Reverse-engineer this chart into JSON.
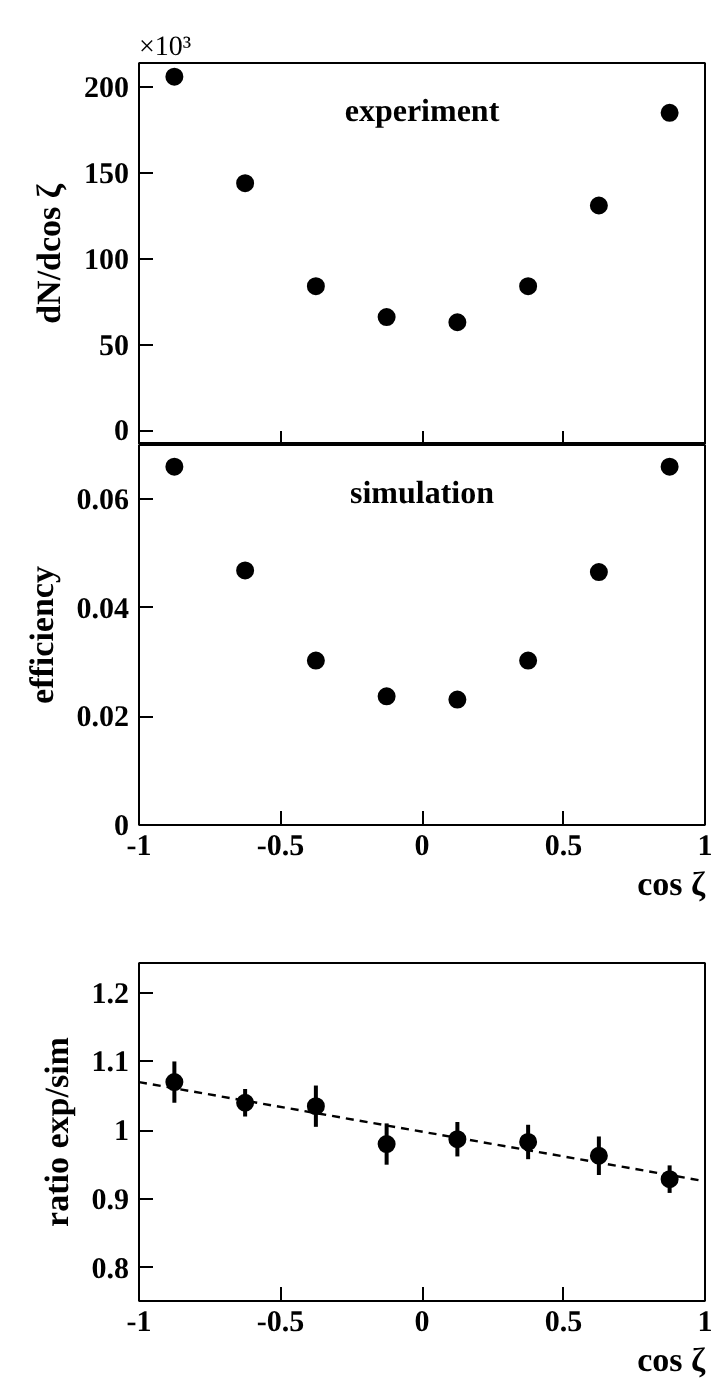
{
  "chart_data": [
    {
      "type": "scatter",
      "ylabel": "dN/dcos ζ",
      "annotations": [
        "×10³",
        "experiment"
      ],
      "x": [
        -0.875,
        -0.625,
        -0.375,
        -0.125,
        0.125,
        0.375,
        0.625,
        0.875
      ],
      "values": [
        206,
        144,
        84,
        66,
        63,
        84,
        131,
        185
      ],
      "color": "#000000",
      "marker": "circle",
      "xlim": [
        -1,
        1
      ],
      "ylim": [
        -8.5,
        214
      ],
      "yticks": [
        0,
        50,
        100,
        150,
        200
      ],
      "tick_labels": "y",
      "grid": false
    },
    {
      "type": "scatter",
      "ylabel": "efficiency",
      "xlabel": "cos ζ",
      "annotations": [
        "simulation"
      ],
      "x": [
        -0.875,
        -0.625,
        -0.375,
        -0.125,
        0.125,
        0.375,
        0.625,
        0.875
      ],
      "values": [
        0.066,
        0.0469,
        0.0303,
        0.0237,
        0.0231,
        0.0303,
        0.0466,
        0.066
      ],
      "color": "#000000",
      "marker": "circle",
      "xlim": [
        -1,
        1
      ],
      "xticks": [
        -1,
        -0.5,
        0,
        0.5,
        1
      ],
      "ylim": [
        0,
        0.07
      ],
      "yticks": [
        0,
        0.02,
        0.04,
        0.06
      ],
      "grid": false
    },
    {
      "type": "scatter",
      "ylabel": "ratio exp/sim",
      "xlabel": "cos ζ",
      "xlim": [
        -1,
        1
      ],
      "xticks": [
        -1,
        -0.5,
        0,
        0.5,
        1
      ],
      "ylim": [
        0.752,
        1.243
      ],
      "yticks": [
        0.8,
        0.9,
        1,
        1.1,
        1.2
      ],
      "grid": false,
      "series": [
        {
          "type": "scatter",
          "color": "#000000",
          "marker": "circle",
          "x": [
            -0.875,
            -0.625,
            -0.375,
            -0.125,
            0.125,
            0.375,
            0.625,
            0.875
          ],
          "values": [
            1.07,
            1.04,
            1.035,
            0.98,
            0.987,
            0.983,
            0.963,
            0.929
          ],
          "errors": [
            0.03,
            0.02,
            0.03,
            0.03,
            0.025,
            0.025,
            0.028,
            0.02
          ]
        },
        {
          "type": "line",
          "color": "#000000",
          "marker": "none",
          "line_style": "dashed",
          "x": [
            -1,
            1
          ],
          "values": [
            1.07,
            0.926
          ]
        }
      ]
    }
  ]
}
